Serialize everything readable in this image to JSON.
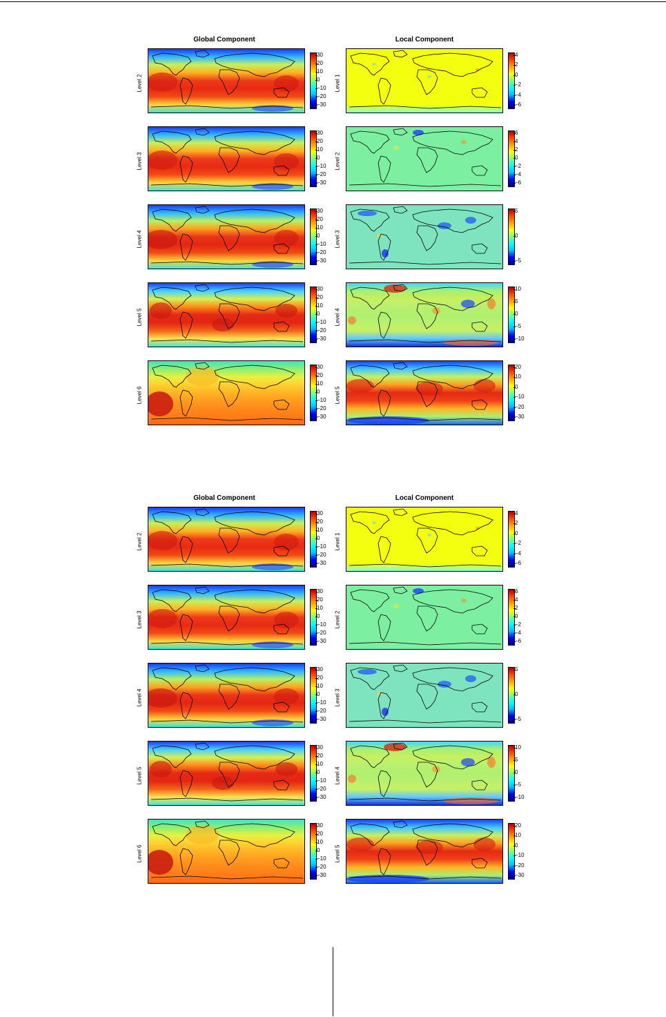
{
  "figures": [
    {
      "global_title": "Global Component",
      "local_title": "Local Component",
      "global_panels": [
        {
          "label": "Level 2",
          "ticks": [
            "30",
            "20",
            "10",
            "0",
            "−10",
            "−20",
            "−30"
          ]
        },
        {
          "label": "Level 3",
          "ticks": [
            "30",
            "20",
            "10",
            "0",
            "−10",
            "−20",
            "−30"
          ]
        },
        {
          "label": "Level 4",
          "ticks": [
            "30",
            "20",
            "10",
            "0",
            "−10",
            "−20",
            "−30"
          ]
        },
        {
          "label": "Level 5",
          "ticks": [
            "30",
            "20",
            "10",
            "0",
            "−10",
            "−20",
            "−30"
          ]
        },
        {
          "label": "Level 6",
          "ticks": [
            "30",
            "20",
            "10",
            "0",
            "−10",
            "−20",
            "−30"
          ]
        }
      ],
      "local_panels": [
        {
          "label": "Level 1",
          "ticks": [
            "4",
            "2",
            "0",
            "−2",
            "−4",
            "−6"
          ]
        },
        {
          "label": "Level 2",
          "ticks": [
            "6",
            "4",
            "2",
            "0",
            "−2",
            "−4",
            "−6"
          ]
        },
        {
          "label": "Level 3",
          "ticks": [
            "5",
            "0",
            "−5"
          ]
        },
        {
          "label": "Level 4",
          "ticks": [
            "10",
            "5",
            "0",
            "−5",
            "−10"
          ]
        },
        {
          "label": "Level 5",
          "ticks": [
            "20",
            "10",
            "0",
            "−10",
            "−20",
            "−30"
          ]
        }
      ]
    },
    {
      "global_title": "Global Component",
      "local_title": "Local Component",
      "global_panels": [
        {
          "label": "Level 2",
          "ticks": [
            "30",
            "20",
            "10",
            "0",
            "−10",
            "−20",
            "−30"
          ]
        },
        {
          "label": "Level 3",
          "ticks": [
            "30",
            "20",
            "10",
            "0",
            "−10",
            "−20",
            "−30"
          ]
        },
        {
          "label": "Level 4",
          "ticks": [
            "30",
            "20",
            "10",
            "0",
            "−10",
            "−20",
            "−30"
          ]
        },
        {
          "label": "Level 5",
          "ticks": [
            "30",
            "20",
            "10",
            "0",
            "−10",
            "−20",
            "−30"
          ]
        },
        {
          "label": "Level 6",
          "ticks": [
            "30",
            "20",
            "10",
            "0",
            "−10",
            "−20",
            "−30"
          ]
        }
      ],
      "local_panels": [
        {
          "label": "Level 1",
          "ticks": [
            "4",
            "2",
            "0",
            "−2",
            "−4",
            "−6"
          ]
        },
        {
          "label": "Level 2",
          "ticks": [
            "6",
            "4",
            "2",
            "0",
            "−2",
            "−4",
            "−6"
          ]
        },
        {
          "label": "Level 3",
          "ticks": [
            "5",
            "0",
            "−5"
          ]
        },
        {
          "label": "Level 4",
          "ticks": [
            "10",
            "5",
            "0",
            "−5",
            "−10"
          ]
        },
        {
          "label": "Level 5",
          "ticks": [
            "20",
            "10",
            "0",
            "−10",
            "−20",
            "−30"
          ]
        }
      ]
    }
  ],
  "colors": {
    "colorbar_stops": [
      "#00008b",
      "#0000ff",
      "#00bfff",
      "#00ffff",
      "#7fff7f",
      "#ffff00",
      "#ffa500",
      "#ff4500",
      "#b00000"
    ]
  }
}
